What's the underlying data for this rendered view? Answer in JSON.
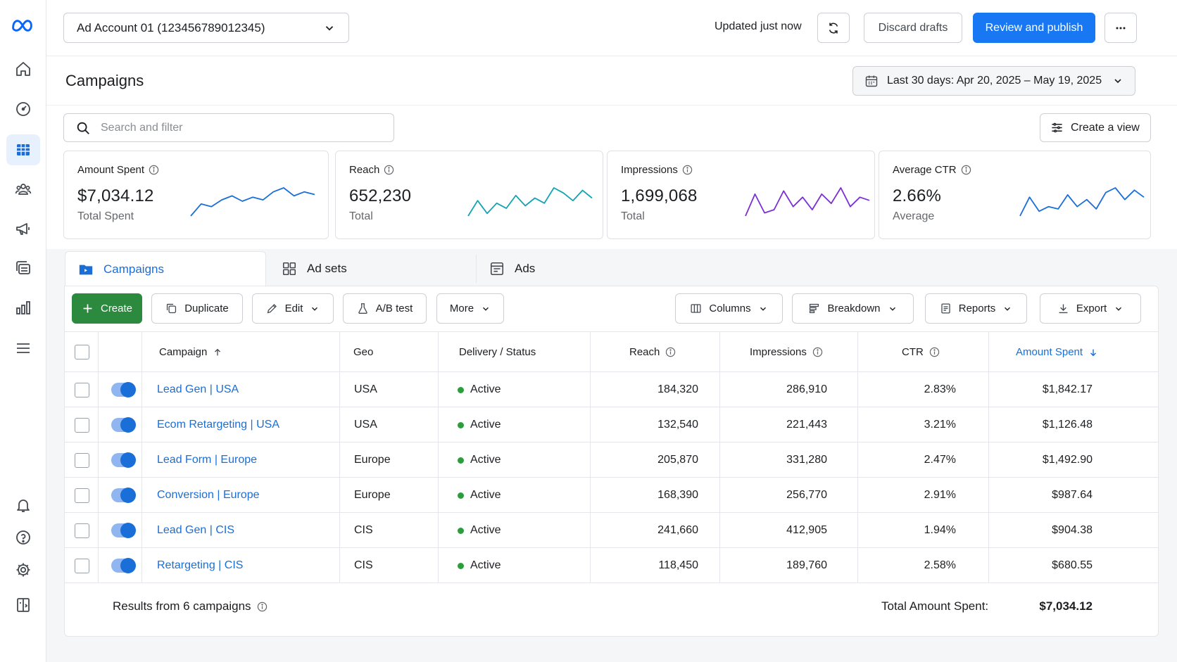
{
  "colors": {
    "accent": "#1877f2",
    "link": "#1a6ed8",
    "create": "#2b8a3e",
    "active_dot": "#2a9d3c"
  },
  "rail": {
    "items": [
      {
        "icon": "meta-logo-icon"
      },
      {
        "icon": "home-icon"
      },
      {
        "icon": "dashboard-gauge-icon"
      },
      {
        "icon": "table-grid-icon"
      },
      {
        "icon": "audience-icon"
      },
      {
        "icon": "megaphone-icon"
      },
      {
        "icon": "media-library-icon"
      },
      {
        "icon": "bar-chart-icon"
      },
      {
        "icon": "menu-icon"
      },
      {
        "icon": "bell-icon"
      },
      {
        "icon": "help-icon"
      },
      {
        "icon": "settings-icon"
      },
      {
        "icon": "panel-toggle-icon"
      }
    ]
  },
  "topbar": {
    "account": "Ad Account 01 (123456789012345)",
    "updated": "Updated just now",
    "discard": "Discard drafts",
    "publish": "Review and publish"
  },
  "page": {
    "title": "Campaigns",
    "date_range": "Last 30 days: Apr 20, 2025 – May 19, 2025",
    "search_placeholder": "Search and filter",
    "create_view": "Create a view"
  },
  "metrics": [
    {
      "label": "Amount Spent",
      "value": "$7,034.12",
      "sub": "Total Spent",
      "color": "#1a6ed8",
      "trend": [
        3,
        12,
        10,
        15,
        18,
        14,
        17,
        15,
        21,
        24,
        18,
        21,
        19
      ]
    },
    {
      "label": "Reach",
      "value": "652,230",
      "sub": "Total",
      "color": "#12a4b3",
      "trend": [
        8,
        14,
        9,
        13,
        11,
        16,
        12,
        15,
        13,
        19,
        17,
        14,
        18,
        15
      ]
    },
    {
      "label": "Impressions",
      "value": "1,699,068",
      "sub": "Total",
      "color": "#7b2fd4",
      "trend": [
        9,
        16,
        10,
        11,
        17,
        12,
        15,
        11,
        16,
        13,
        18,
        12,
        15,
        14
      ]
    },
    {
      "label": "Average CTR",
      "value": "2.66%",
      "sub": "Average",
      "color": "#1a6ed8",
      "trend": [
        8,
        16,
        10,
        12,
        11,
        17,
        12,
        15,
        11,
        18,
        20,
        15,
        19,
        16
      ]
    }
  ],
  "tabs": [
    {
      "label": "Campaigns",
      "icon": "folder-icon"
    },
    {
      "label": "Ad sets",
      "icon": "grid-icon"
    },
    {
      "label": "Ads",
      "icon": "ad-icon"
    }
  ],
  "toolbar": {
    "create": "Create",
    "duplicate": "Duplicate",
    "edit": "Edit",
    "ab_test": "A/B test",
    "more": "More",
    "columns": "Columns",
    "breakdown": "Breakdown",
    "reports": "Reports",
    "export": "Export"
  },
  "table": {
    "headers": {
      "campaign": "Campaign",
      "geo": "Geo",
      "delivery": "Delivery / Status",
      "reach": "Reach",
      "impressions": "Impressions",
      "ctr": "CTR",
      "amount": "Amount Spent"
    },
    "rows": [
      {
        "campaign": "Lead Gen | USA",
        "geo": "USA",
        "status": "Active",
        "reach": "184,320",
        "impressions": "286,910",
        "ctr": "2.83%",
        "amount": "$1,842.17"
      },
      {
        "campaign": "Ecom Retargeting | USA",
        "geo": "USA",
        "status": "Active",
        "reach": "132,540",
        "impressions": "221,443",
        "ctr": "3.21%",
        "amount": "$1,126.48"
      },
      {
        "campaign": "Lead Form | Europe",
        "geo": "Europe",
        "status": "Active",
        "reach": "205,870",
        "impressions": "331,280",
        "ctr": "2.47%",
        "amount": "$1,492.90"
      },
      {
        "campaign": "Conversion | Europe",
        "geo": "Europe",
        "status": "Active",
        "reach": "168,390",
        "impressions": "256,770",
        "ctr": "2.91%",
        "amount": "$987.64"
      },
      {
        "campaign": "Lead Gen | CIS",
        "geo": "CIS",
        "status": "Active",
        "reach": "241,660",
        "impressions": "412,905",
        "ctr": "1.94%",
        "amount": "$904.38"
      },
      {
        "campaign": "Retargeting | CIS",
        "geo": "CIS",
        "status": "Active",
        "reach": "118,450",
        "impressions": "189,760",
        "ctr": "2.58%",
        "amount": "$680.55"
      }
    ]
  },
  "footer": {
    "results": "Results from 6 campaigns",
    "total_label": "Total Amount Spent:",
    "total_value": "$7,034.12"
  }
}
